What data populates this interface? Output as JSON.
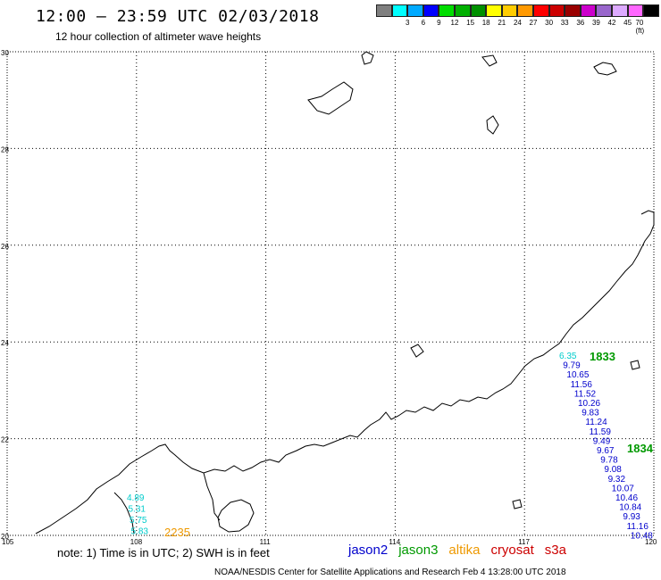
{
  "title": "12:00 – 23:59 UTC 02/03/2018",
  "subtitle": "12 hour collection of altimeter wave heights",
  "legend": {
    "colors": [
      "#7f7f7f",
      "#00ffff",
      "#00aaff",
      "#0000ff",
      "#00dd00",
      "#00b000",
      "#009000",
      "#ffff00",
      "#ffcc00",
      "#ff9900",
      "#ff0000",
      "#cc0000",
      "#990000",
      "#cc00cc",
      "#9966cc",
      "#ddaaff",
      "#ff66ff",
      "#000000"
    ],
    "labels": [
      "3",
      "6",
      "9",
      "12",
      "15",
      "18",
      "21",
      "24",
      "27",
      "30",
      "33",
      "36",
      "39",
      "42",
      "45",
      "70 (ft)"
    ]
  },
  "axes": {
    "x_ticks": [
      "105",
      "108",
      "111",
      "114",
      "117",
      "120"
    ],
    "y_ticks": [
      "30",
      "28",
      "26",
      "24",
      "22",
      "20"
    ],
    "xlim": [
      105,
      120
    ],
    "ylim": [
      20,
      30
    ]
  },
  "tracks": {
    "east_values": [
      "6.35",
      "9.79",
      "10.65",
      "11.56",
      "11.52",
      "10.26",
      "9.83",
      "11.24",
      "11.59",
      "9.49",
      "9.67",
      "9.78",
      "9.08",
      "9.32",
      "10.07",
      "10.46",
      "10.84",
      "9.93",
      "11.16",
      "10.48"
    ],
    "east_colors": [
      "#00cccc",
      "#0000cc",
      "#0000cc",
      "#0000cc",
      "#0000cc",
      "#0000cc",
      "#0000cc",
      "#0000cc",
      "#0000cc",
      "#0000cc",
      "#0000cc",
      "#0000cc",
      "#0000cc",
      "#0000cc",
      "#0000cc",
      "#0000cc",
      "#0000cc",
      "#0000cc",
      "#0000cc",
      "#0000cc"
    ],
    "east_time_1": "1833",
    "east_time_2": "1834",
    "west_values": [
      "4.89",
      "5.31",
      "5.75",
      "5.83"
    ],
    "west_time": "2235"
  },
  "satellites": [
    {
      "name": "jason2",
      "color": "#0000cc"
    },
    {
      "name": "jason3",
      "color": "#009900"
    },
    {
      "name": "altika",
      "color": "#ee9900"
    },
    {
      "name": "cryosat",
      "color": "#cc0000"
    },
    {
      "name": "s3a",
      "color": "#cc0000"
    }
  ],
  "note": "note: 1) Time is in UTC; 2) SWH is in feet",
  "footer": "NOAA/NESDIS Center for Satellite Applications and Research   Feb  4 13:28:00 UTC 2018"
}
